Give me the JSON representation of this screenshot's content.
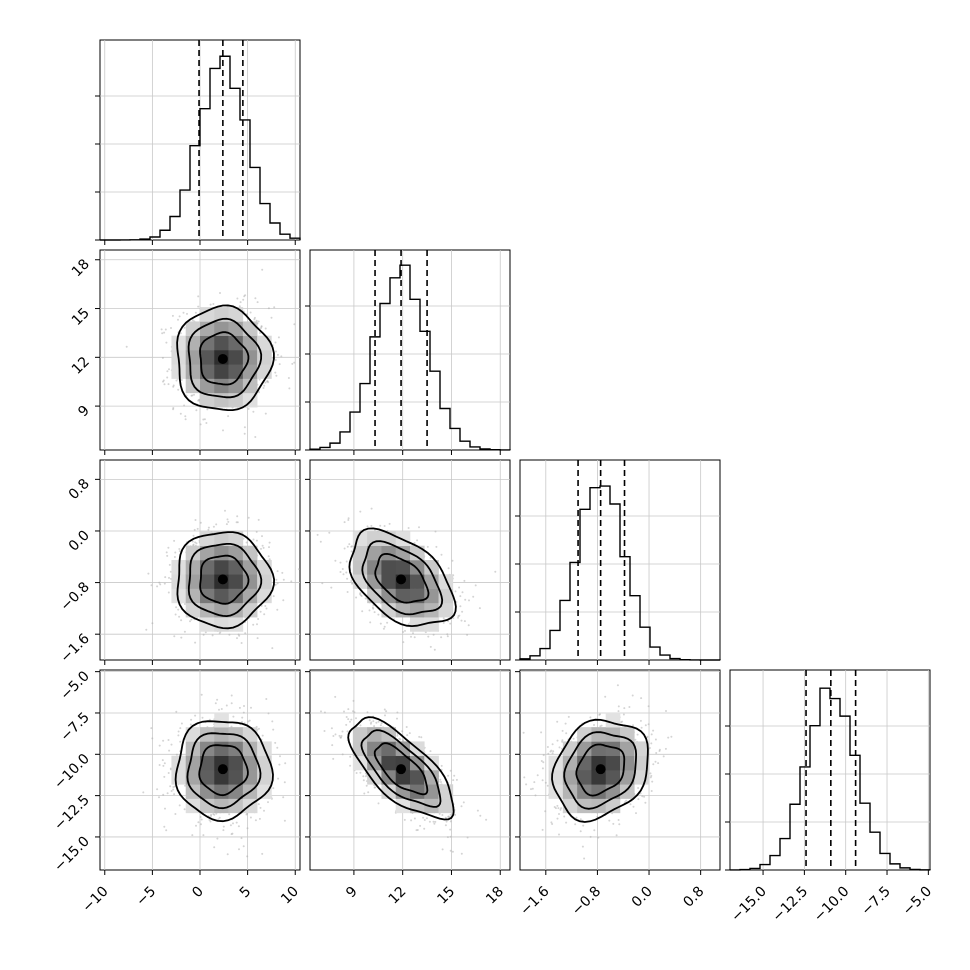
{
  "chart_data": {
    "type": "corner",
    "title": "",
    "grid": true,
    "parameters": [
      {
        "range": [
          -10.5,
          10.5
        ],
        "ticks": [
          -10,
          -5,
          0,
          5,
          10
        ],
        "tick_labels": [
          "−10",
          "−5",
          "0",
          "5",
          "10"
        ],
        "mean": 2.4,
        "sigma": 2.5,
        "quantiles": [
          -0.1,
          2.4,
          4.5
        ]
      },
      {
        "range": [
          6.3,
          18.6
        ],
        "ticks": [
          9,
          12,
          15,
          18
        ],
        "tick_labels": [
          "9",
          "12",
          "15",
          "18"
        ],
        "mean": 11.9,
        "sigma": 1.6,
        "quantiles": [
          10.3,
          11.9,
          13.5
        ]
      },
      {
        "range": [
          -2.0,
          1.1
        ],
        "ticks": [
          -1.6,
          -0.8,
          0.0,
          0.8
        ],
        "tick_labels": [
          "−1.6",
          "−0.8",
          "0.0",
          "0.8"
        ],
        "mean": -0.75,
        "sigma": 0.37,
        "quantiles": [
          -1.1,
          -0.75,
          -0.38
        ]
      },
      {
        "range": [
          -17.0,
          -4.9
        ],
        "ticks": [
          -15.0,
          -12.5,
          -10.0,
          -7.5,
          -5.0
        ],
        "tick_labels": [
          "−15.0",
          "−12.5",
          "−10.0",
          "−7.5",
          "−5.0"
        ],
        "mean": -10.9,
        "sigma": 1.5,
        "quantiles": [
          -12.4,
          -10.9,
          -9.4
        ]
      }
    ],
    "correlations": [
      [
        1,
        2,
        0.0
      ],
      [
        1,
        3,
        0.0
      ],
      [
        2,
        3,
        -0.45
      ],
      [
        1,
        4,
        0.0
      ],
      [
        2,
        4,
        -0.7
      ],
      [
        3,
        4,
        0.2
      ]
    ],
    "hist_bins": 20,
    "contour_levels_sigma": [
      1.0,
      1.5,
      2.0
    ],
    "colors": {
      "line": "#000000",
      "scatter": "#b0b0b0",
      "grid": "#c8c8c8"
    }
  }
}
